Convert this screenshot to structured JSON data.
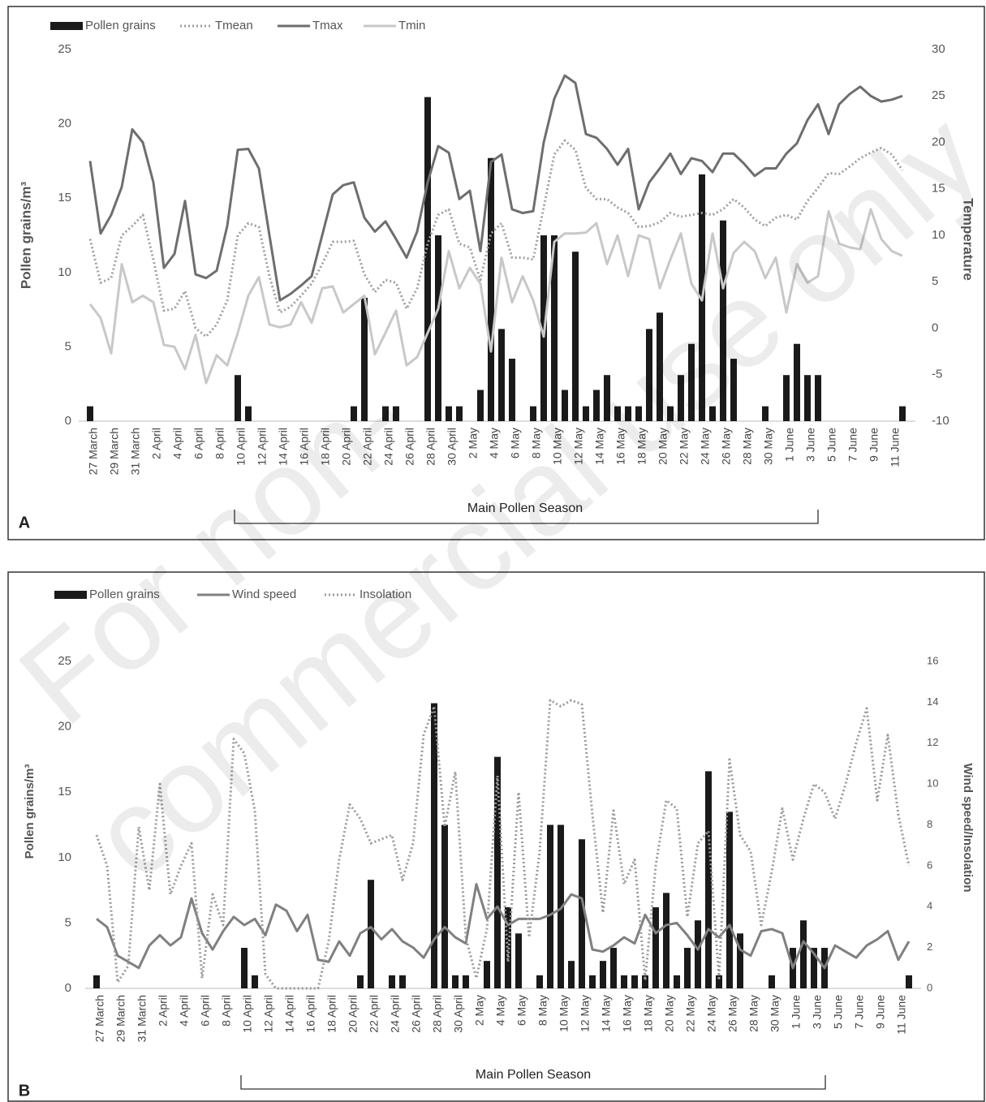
{
  "chart_data": [
    {
      "type": "bar",
      "panel": "A",
      "legend": "upper left",
      "ylabel": "Pollen grains/m³",
      "y2label": "Temperature",
      "annotation": "Main Pollen Season",
      "ylim": [
        0,
        25
      ],
      "yticks": [
        0,
        5,
        10,
        15,
        20,
        25
      ],
      "y2lim": [
        -10,
        30
      ],
      "y2ticks": [
        -10,
        -5,
        0,
        5,
        10,
        15,
        20,
        25,
        30
      ],
      "categories": [
        "27 March",
        null,
        "29 March",
        null,
        "31 March",
        null,
        "2 April",
        null,
        "4 April",
        null,
        "6 April",
        null,
        "8 April",
        null,
        "10 April",
        null,
        "12 April",
        null,
        "14 April",
        null,
        "16 April",
        null,
        "18 April",
        null,
        "20 April",
        null,
        "22 April",
        null,
        "24 April",
        null,
        "26 April",
        null,
        "28 April",
        null,
        "30 April",
        null,
        "2 May",
        null,
        "4 May",
        null,
        "6 May",
        null,
        "8 May",
        null,
        "10 May",
        null,
        "12 May",
        null,
        "14 May",
        null,
        "16 May",
        null,
        "18 May",
        null,
        "20 May",
        null,
        "22 May",
        null,
        "24 May",
        null,
        "26 May",
        null,
        "28 May",
        null,
        "30 May",
        null,
        "1 June",
        null,
        "3 June",
        null,
        "5 June",
        null,
        "7 June",
        null,
        "9 June",
        null,
        "11 June",
        null
      ],
      "series": [
        {
          "name": "Pollen grains",
          "style": "bar",
          "color": "#1a1a1a",
          "values": [
            1,
            0,
            0,
            0,
            0,
            0,
            0,
            0,
            0,
            0,
            0,
            0,
            0,
            0,
            3.1,
            1,
            0,
            0,
            0,
            0,
            0,
            0,
            0,
            0,
            0,
            1,
            8.3,
            0,
            1,
            1,
            0,
            0,
            21.8,
            12.5,
            1,
            1,
            0,
            2.1,
            17.7,
            6.2,
            4.2,
            0,
            1,
            12.5,
            12.5,
            2.1,
            11.4,
            1,
            2.1,
            3.1,
            1,
            1,
            1,
            6.2,
            7.3,
            1,
            3.1,
            5.2,
            16.6,
            1,
            13.5,
            4.2,
            0,
            0,
            1,
            0,
            3.1,
            5.2,
            3.1,
            3.1,
            0,
            0,
            0,
            0,
            0,
            0,
            0,
            1
          ]
        },
        {
          "name": "Tmean",
          "style": "dotted",
          "axis": "y2",
          "color": "#a0a0a0",
          "values": [
            9.6,
            4.9,
            5.4,
            10,
            11,
            12.2,
            7.4,
            1.9,
            2.1,
            4,
            0,
            -0.9,
            0.4,
            3,
            10,
            11.3,
            10.9,
            5.6,
            1.7,
            2.3,
            3.5,
            4.8,
            6.9,
            9.3,
            9.3,
            9.4,
            5.8,
            3.9,
            5.2,
            4.9,
            2.1,
            4.3,
            9.1,
            12.2,
            12.8,
            9.1,
            8.7,
            5.2,
            10.2,
            11.3,
            7.6,
            7.6,
            7.4,
            13,
            18.7,
            20.2,
            19.2,
            15.1,
            13.9,
            13.9,
            13,
            12.4,
            10.9,
            11,
            11.4,
            12.4,
            12,
            12.2,
            12.4,
            12.2,
            12.8,
            13.9,
            13,
            11.7,
            11,
            11.9,
            12.2,
            11.7,
            13.7,
            15.1,
            16.7,
            16.6,
            17.4,
            18.3,
            18.9,
            19.4,
            18.7,
            17
          ]
        },
        {
          "name": "Tmax",
          "style": "solid",
          "axis": "y2",
          "color": "#6e6e6e",
          "values": [
            18,
            10.2,
            12.2,
            15.2,
            21.4,
            20,
            15.7,
            6.5,
            8,
            13.7,
            5.8,
            5.4,
            6.2,
            11,
            19.2,
            19.3,
            17.2,
            10,
            3,
            3.7,
            4.6,
            5.6,
            10,
            14.4,
            15.4,
            15.7,
            11.9,
            10.4,
            11.5,
            9.6,
            7.6,
            10.4,
            15.7,
            19.6,
            18.9,
            13.9,
            14.8,
            8.3,
            17.9,
            18.7,
            12.8,
            12.4,
            12.6,
            20,
            24.7,
            27.2,
            26.4,
            20.9,
            20.5,
            19.3,
            17.6,
            19.3,
            12.8,
            15.7,
            17.2,
            18.8,
            16.6,
            18.3,
            18,
            16.8,
            18.8,
            18.8,
            17.7,
            16.4,
            17.2,
            17.2,
            18.8,
            19.9,
            22.4,
            24.1,
            20.9,
            24.1,
            25.2,
            26,
            25,
            24.4,
            24.6,
            25
          ]
        },
        {
          "name": "Tmin",
          "style": "solid",
          "axis": "y2",
          "color": "#c8c8c8",
          "values": [
            2.6,
            1.1,
            -2.7,
            6.9,
            2.8,
            3.5,
            2.8,
            -1.8,
            -2,
            -4.4,
            -0.7,
            -5.9,
            -2.9,
            -4,
            -0.5,
            3.5,
            5.5,
            0.4,
            0.1,
            0.4,
            2.8,
            0.6,
            4.3,
            4.5,
            1.7,
            2.6,
            3.5,
            -2.8,
            -0.5,
            1.9,
            -4,
            -3.1,
            -0.5,
            2.1,
            8.3,
            4.3,
            6.5,
            4.8,
            -2.5,
            7.6,
            2.8,
            5.6,
            3,
            -0.9,
            9.3,
            10.2,
            10.2,
            10.3,
            11.3,
            6.9,
            10,
            5.6,
            10,
            9.6,
            4.3,
            7.4,
            10.2,
            4.8,
            3,
            10.2,
            4.3,
            8.1,
            9.3,
            8.3,
            5.4,
            7.6,
            1.7,
            6.9,
            4.9,
            5.6,
            12.6,
            9.1,
            8.7,
            8.5,
            12.8,
            9.6,
            8.3,
            7.8
          ]
        }
      ]
    },
    {
      "type": "bar",
      "panel": "B",
      "legend": "upper left",
      "ylabel": "Pollen grains/m³",
      "y2label": "Wind speed/Insolation",
      "annotation": "Main Pollen Season",
      "ylim": [
        0,
        25
      ],
      "yticks": [
        0,
        5,
        10,
        15,
        20,
        25
      ],
      "y2lim": [
        0,
        16
      ],
      "y2ticks": [
        0,
        2,
        4,
        6,
        8,
        10,
        12,
        14,
        16
      ],
      "categories": [
        "27 March",
        null,
        "29 March",
        null,
        "31 March",
        null,
        "2 April",
        null,
        "4 April",
        null,
        "6 April",
        null,
        "8 April",
        null,
        "10 April",
        null,
        "12 April",
        null,
        "14 April",
        null,
        "16 April",
        null,
        "18 April",
        null,
        "20 April",
        null,
        "22 April",
        null,
        "24 April",
        null,
        "26 April",
        null,
        "28 April",
        null,
        "30 April",
        null,
        "2 May",
        null,
        "4 May",
        null,
        "6 May",
        null,
        "8 May",
        null,
        "10 May",
        null,
        "12 May",
        null,
        "14 May",
        null,
        "16 May",
        null,
        "18 May",
        null,
        "20 May",
        null,
        "22 May",
        null,
        "24 May",
        null,
        "26 May",
        null,
        "28 May",
        null,
        "30 May",
        null,
        "1 June",
        null,
        "3 June",
        null,
        "5 June",
        null,
        "7 June",
        null,
        "9 June",
        null,
        "11 June",
        null
      ],
      "series": [
        {
          "name": "Pollen grains",
          "style": "bar",
          "color": "#1a1a1a",
          "values": [
            1,
            0,
            0,
            0,
            0,
            0,
            0,
            0,
            0,
            0,
            0,
            0,
            0,
            0,
            3.1,
            1,
            0,
            0,
            0,
            0,
            0,
            0,
            0,
            0,
            0,
            1,
            8.3,
            0,
            1,
            1,
            0,
            0,
            21.8,
            12.5,
            1,
            1,
            0,
            2.1,
            17.7,
            6.2,
            4.2,
            0,
            1,
            12.5,
            12.5,
            2.1,
            11.4,
            1,
            2.1,
            3.1,
            1,
            1,
            1,
            6.2,
            7.3,
            1,
            3.1,
            5.2,
            16.6,
            1,
            13.5,
            4.2,
            0,
            0,
            1,
            0,
            3.1,
            5.2,
            3.1,
            3.1,
            0,
            0,
            0,
            0,
            0,
            0,
            0,
            1
          ]
        },
        {
          "name": "Wind speed",
          "style": "solid",
          "axis": "y2",
          "color": "#808080",
          "values": [
            3.4,
            3,
            1.6,
            1.3,
            1,
            2.1,
            2.6,
            2.1,
            2.5,
            4.4,
            2.7,
            1.9,
            2.8,
            3.5,
            3.1,
            3.4,
            2.6,
            4.1,
            3.8,
            2.8,
            3.6,
            1.4,
            1.3,
            2.3,
            1.6,
            2.7,
            3,
            2.4,
            2.9,
            2.3,
            2,
            1.5,
            2.4,
            3,
            2.5,
            2.2,
            5.1,
            3.4,
            4,
            3.1,
            3.4,
            3.4,
            3.4,
            3.6,
            3.9,
            4.6,
            4.4,
            1.9,
            1.8,
            2.1,
            2.5,
            2.2,
            3.6,
            2.7,
            3.1,
            3.2,
            2.6,
            1.9,
            2.9,
            2.5,
            3.1,
            1.9,
            1.6,
            2.8,
            2.9,
            2.7,
            1,
            2.3,
            1.7,
            1,
            2.1,
            1.8,
            1.5,
            2.1,
            2.4,
            2.8,
            1.4,
            2.3
          ]
        },
        {
          "name": "Insolation",
          "style": "dotted",
          "axis": "y2",
          "color": "#9a9a9a",
          "values": [
            7.5,
            6,
            0.3,
            1.1,
            7.9,
            4.8,
            10,
            4.6,
            6,
            7.1,
            0.5,
            4.6,
            3.1,
            12.2,
            11.5,
            8.7,
            0.7,
            0,
            0,
            0,
            0,
            0,
            2.3,
            6.3,
            9,
            8.3,
            7.1,
            7.3,
            7.5,
            5.3,
            7.1,
            12.4,
            13.8,
            7.9,
            10.6,
            2.5,
            0.5,
            2.9,
            10.4,
            1.3,
            9.6,
            2.5,
            6.7,
            14.1,
            13.8,
            14.1,
            13.9,
            8.5,
            3.7,
            8.7,
            5.1,
            6.3,
            0.4,
            6,
            9.2,
            8.8,
            3.5,
            7.1,
            7.7,
            0.5,
            11.2,
            7.5,
            6.7,
            3.1,
            5.7,
            8.8,
            6.3,
            8.3,
            10,
            9.6,
            8.3,
            10,
            12,
            13.7,
            9.2,
            12.4,
            8.5,
            6
          ]
        }
      ]
    }
  ],
  "watermark": [
    "For non-",
    "commercial use only"
  ]
}
